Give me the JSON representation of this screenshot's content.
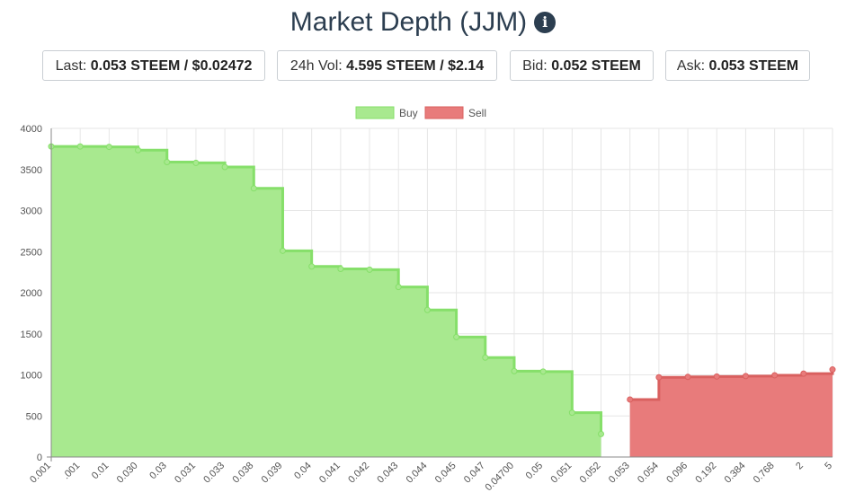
{
  "header": {
    "title": "Market Depth (JJM)",
    "info_icon": "info-circle-icon"
  },
  "stats": {
    "last": {
      "label": "Last:",
      "value": "0.053 STEEM / $0.02472"
    },
    "volume": {
      "label": "24h Vol:",
      "value": "4.595 STEEM / $2.14"
    },
    "bid": {
      "label": "Bid:",
      "value": "0.052 STEEM"
    },
    "ask": {
      "label": "Ask:",
      "value": "0.053 STEEM"
    }
  },
  "chart_data": {
    "type": "area",
    "title": "",
    "xlabel": "",
    "ylabel": "",
    "ylim": [
      0,
      4000
    ],
    "yticks": [
      0,
      500,
      1000,
      1500,
      2000,
      2500,
      3000,
      3500,
      4000
    ],
    "grid": true,
    "legend_position": "top-center",
    "categories": [
      "0.001",
      ".001",
      "0.01",
      "0.030",
      "0.03",
      "0.031",
      "0.033",
      "0.038",
      "0.039",
      "0.04",
      "0.041",
      "0.042",
      "0.043",
      "0.044",
      "0.045",
      "0.047",
      "0.04700",
      "0.05",
      "0.051",
      "0.052",
      "0.053",
      "0.054",
      "0.096",
      "0.192",
      "0.384",
      "0.768",
      "2",
      "5"
    ],
    "series": [
      {
        "name": "Buy",
        "color": "#a8e98f",
        "line_color": "#86df6a",
        "values": [
          3780,
          3780,
          3775,
          3735,
          3590,
          3580,
          3530,
          3270,
          2510,
          2320,
          2290,
          2280,
          2070,
          1790,
          1460,
          1210,
          1045,
          1040,
          540,
          280,
          null,
          null,
          null,
          null,
          null,
          null,
          null,
          null
        ]
      },
      {
        "name": "Sell",
        "color": "#e87b7b",
        "line_color": "#d9605f",
        "values": [
          null,
          null,
          null,
          null,
          null,
          null,
          null,
          null,
          null,
          null,
          null,
          null,
          null,
          null,
          null,
          null,
          null,
          null,
          null,
          null,
          700,
          970,
          975,
          980,
          985,
          995,
          1015,
          1065
        ]
      }
    ]
  }
}
